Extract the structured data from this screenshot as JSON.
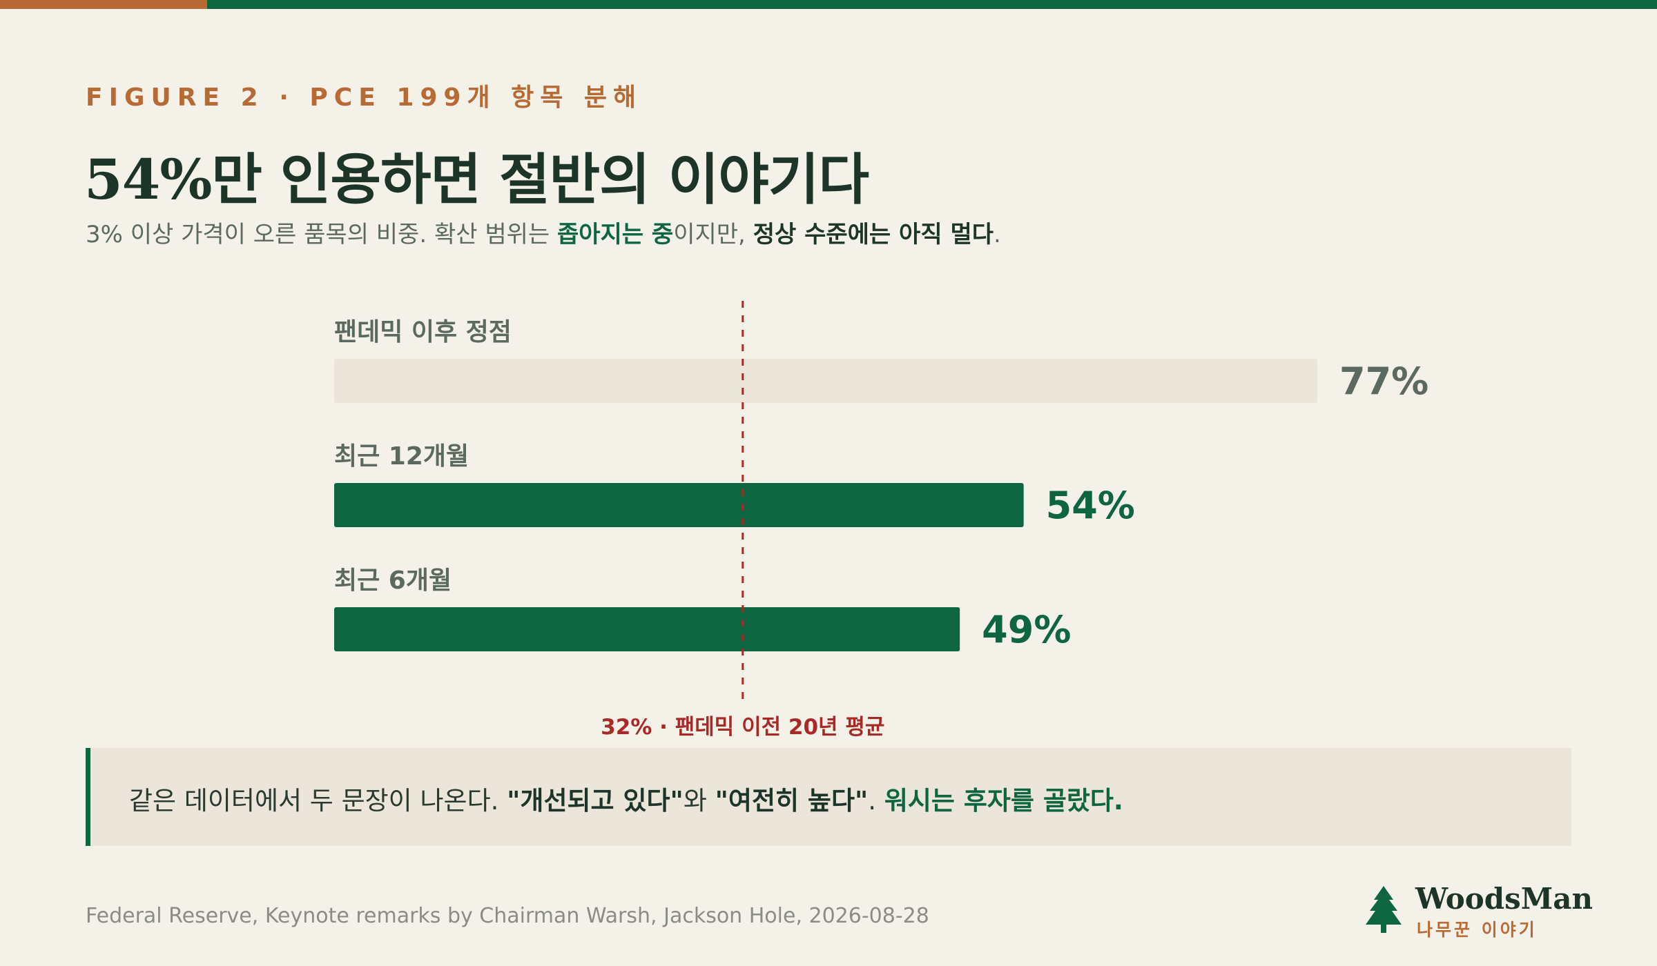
{
  "colors": {
    "accent_orange": "#b86a35",
    "brand_green": "#0d6640",
    "muted_bar": "#ebe5da",
    "reference_red": "#a82a28",
    "label_gray": "#5c6960"
  },
  "header": {
    "eyebrow": "FIGURE 2 · PCE 199개 항목 분해",
    "title": "54%만 인용하면 절반의 이야기다",
    "subtitle": {
      "lead": "3% 이상 가격이 오른 품목의 비중. 확산 범위는 ",
      "hl_green": "좁아지는 중",
      "mid": "이지만, ",
      "hl_dark": "정상 수준에는 아직 멀다",
      "end": "."
    }
  },
  "chart_data": {
    "type": "bar",
    "orientation": "horizontal",
    "categories": [
      "팬데믹 이후 정점",
      "최근 12개월",
      "최근 6개월"
    ],
    "values": [
      77,
      54,
      49
    ],
    "value_labels": [
      "77%",
      "54%",
      "49%"
    ],
    "highlight": [
      false,
      true,
      true
    ],
    "xlim": [
      0,
      77
    ],
    "reference_line": {
      "value": 32,
      "label": "32% · 팬데믹 이전 20년 평균"
    },
    "grid": false
  },
  "callout": {
    "lead": "같은 데이터에서 두 문장이 나온다. ",
    "quote1": "\"개선되고 있다\"",
    "mid": "와 ",
    "quote2": "\"여전히 높다\"",
    "mid2": ". ",
    "conclusion": "워시는 후자를 골랐다."
  },
  "footer": {
    "source": "Federal Reserve, Keynote remarks by Chairman Warsh, Jackson Hole, 2026-08-28",
    "logo_name": "WoodsMan",
    "logo_sub": "나무꾼 이야기",
    "logo_icon": "pine-tree-icon"
  }
}
